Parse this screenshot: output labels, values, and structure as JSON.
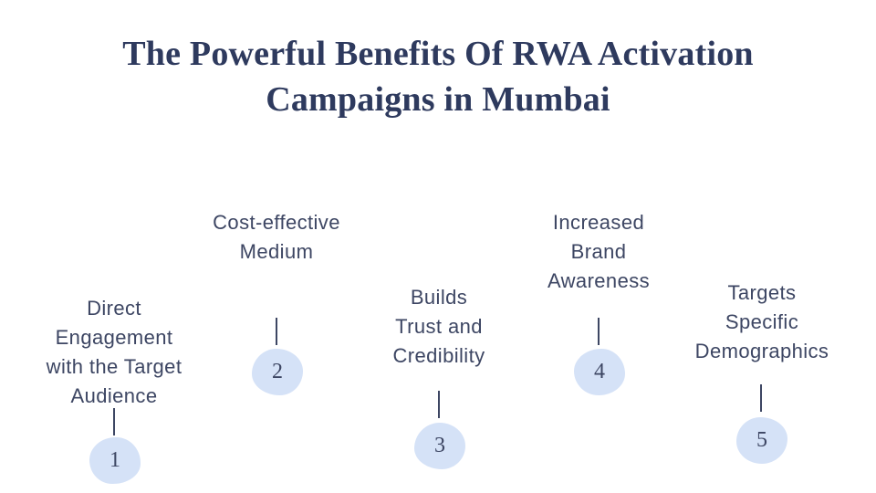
{
  "title": "The Powerful Benefits Of RWA Activation\nCampaigns in Mumbai",
  "colors": {
    "title-color": "#2e3a5e",
    "text-color": "#3d4663",
    "blob-color": "#d5e2f7",
    "bg-color": "#ffffff"
  },
  "items": [
    {
      "number": "1",
      "label": "Direct\nEngagement\nwith the Target\nAudience"
    },
    {
      "number": "2",
      "label": "Cost-effective\nMedium"
    },
    {
      "number": "3",
      "label": "Builds\nTrust and\nCredibility"
    },
    {
      "number": "4",
      "label": "Increased\nBrand\nAwareness"
    },
    {
      "number": "5",
      "label": "Targets\nSpecific\nDemographics"
    }
  ]
}
